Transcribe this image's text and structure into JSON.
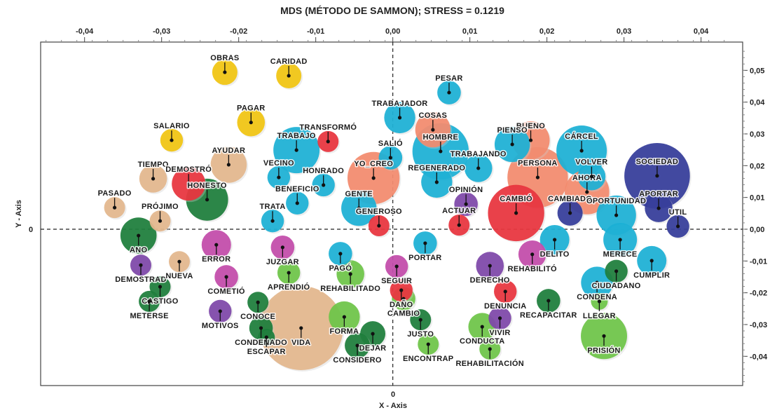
{
  "chart_data": {
    "type": "scatter",
    "title": "MDS (MÉTODO DE SAMMON); STRESS = 0.1219",
    "xlabel": "X - Axis",
    "ylabel": "Y - Axis",
    "xlim": [
      -0.0457,
      0.0454
    ],
    "ylim": [
      -0.0492,
      0.0589
    ],
    "x_ticks": [
      "-0,04",
      "-0,03",
      "-0,02",
      "-0,01",
      "0,00",
      "0,01",
      "0,02",
      "0,03",
      "0,04"
    ],
    "x_tick_values": [
      -0.04,
      -0.03,
      -0.02,
      -0.01,
      0,
      0.01,
      0.02,
      0.03,
      0.04
    ],
    "y_ticks": [
      "0,05",
      "0,04",
      "0,03",
      "0,02",
      "0,01",
      "0,00",
      "-0,01",
      "-0,02",
      "-0,03",
      "-0,04"
    ],
    "y_tick_values": [
      0.05,
      0.04,
      0.03,
      0.02,
      0.01,
      0,
      -0.01,
      -0.02,
      -0.03,
      -0.04
    ],
    "zero_label": "0",
    "grid": false,
    "zero_lines": "dashed",
    "palette": {
      "yellow": "#f1c40f",
      "tan": "#e3b68c",
      "red": "#e8323c",
      "dgreen": "#1b7d3a",
      "cyan": "#1ab0d5",
      "salmon": "#f38a6c",
      "purple": "#7d45a8",
      "magenta": "#c24aa9",
      "navy": "#333b99",
      "lgreen": "#6cc446"
    },
    "points": [
      {
        "label": "OBRAS",
        "x": -0.0218,
        "y": 0.0494,
        "size": 3.0,
        "group": "yellow"
      },
      {
        "label": "CARIDAD",
        "x": -0.0135,
        "y": 0.0483,
        "size": 3.0,
        "group": "yellow"
      },
      {
        "label": "PAGAR",
        "x": -0.0184,
        "y": 0.0336,
        "size": 3.3,
        "group": "yellow"
      },
      {
        "label": "SALARIO",
        "x": -0.0287,
        "y": 0.028,
        "size": 2.7,
        "group": "yellow"
      },
      {
        "label": "AYUDAR",
        "x": -0.0213,
        "y": 0.0203,
        "size": 4.3,
        "group": "tan"
      },
      {
        "label": "TIEMPO",
        "x": -0.0311,
        "y": 0.0159,
        "size": 3.3,
        "group": "tan"
      },
      {
        "label": "DEMOSTRÓ",
        "x": -0.0265,
        "y": 0.0143,
        "size": 4.0,
        "group": "red"
      },
      {
        "label": "HONESTO",
        "x": -0.0241,
        "y": 0.0093,
        "size": 5.0,
        "group": "dgreen"
      },
      {
        "label": "PASADO",
        "x": -0.0361,
        "y": 0.0068,
        "size": 2.5,
        "group": "tan"
      },
      {
        "label": "PRÓJIMO",
        "x": -0.0302,
        "y": 0.0026,
        "size": 2.5,
        "group": "tan"
      },
      {
        "label": "ANO",
        "x": -0.033,
        "y": -0.002,
        "size": 4.3,
        "group": "dgreen"
      },
      {
        "label": "TRABAJO",
        "x": -0.0125,
        "y": 0.0249,
        "size": 5.5,
        "group": "cyan"
      },
      {
        "label": "TRANSFORMÓ",
        "x": -0.0084,
        "y": 0.0276,
        "size": 2.5,
        "group": "red"
      },
      {
        "label": "VECINO",
        "x": -0.0148,
        "y": 0.0163,
        "size": 2.7,
        "group": "cyan"
      },
      {
        "label": "HONRADO",
        "x": -0.009,
        "y": 0.0139,
        "size": 2.7,
        "group": "cyan"
      },
      {
        "label": "BENEFICIO",
        "x": -0.0124,
        "y": 0.0082,
        "size": 2.7,
        "group": "cyan"
      },
      {
        "label": "TRATA",
        "x": -0.0156,
        "y": 0.0026,
        "size": 2.7,
        "group": "cyan"
      },
      {
        "label": "YO_CREO",
        "x": -0.0025,
        "y": 0.0161,
        "size": 6.2,
        "group": "salmon"
      },
      {
        "label": "GENTE",
        "x": -0.0044,
        "y": 0.0066,
        "size": 4.2,
        "group": "cyan"
      },
      {
        "label": "GENEROSO",
        "x": -0.0018,
        "y": 0.0011,
        "size": 2.5,
        "group": "red"
      },
      {
        "label": "SALIÓ",
        "x": -0.0003,
        "y": 0.0225,
        "size": 2.8,
        "group": "cyan"
      },
      {
        "label": "TRABAJADOR",
        "x": 0.0009,
        "y": 0.0351,
        "size": 3.7,
        "group": "cyan"
      },
      {
        "label": "PESAR",
        "x": 0.0073,
        "y": 0.043,
        "size": 2.8,
        "group": "cyan"
      },
      {
        "label": "COSAS",
        "x": 0.0052,
        "y": 0.0313,
        "size": 4.2,
        "group": "salmon"
      },
      {
        "label": "HOMBRE",
        "x": 0.0062,
        "y": 0.0245,
        "size": 6.7,
        "group": "cyan"
      },
      {
        "label": "REGENERADO",
        "x": 0.0057,
        "y": 0.0148,
        "size": 3.7,
        "group": "cyan"
      },
      {
        "label": "TRABAJANDO",
        "x": 0.0111,
        "y": 0.0192,
        "size": 3.3,
        "group": "cyan"
      },
      {
        "label": "OPINIÓN",
        "x": 0.0095,
        "y": 0.0079,
        "size": 2.8,
        "group": "purple"
      },
      {
        "label": "ACTUAR",
        "x": 0.0086,
        "y": 0.0013,
        "size": 2.5,
        "group": "red"
      },
      {
        "label": "BUENO",
        "x": 0.0179,
        "y": 0.028,
        "size": 4.5,
        "group": "salmon"
      },
      {
        "label": "PIENSO",
        "x": 0.0155,
        "y": 0.0267,
        "size": 4.2,
        "group": "cyan"
      },
      {
        "label": "PERSONA",
        "x": 0.0188,
        "y": 0.0163,
        "size": 7.2,
        "group": "salmon"
      },
      {
        "label": "AHORA",
        "x": 0.0252,
        "y": 0.0117,
        "size": 5.3,
        "group": "salmon"
      },
      {
        "label": "CÁRCEL",
        "x": 0.0245,
        "y": 0.0247,
        "size": 6.0,
        "group": "cyan"
      },
      {
        "label": "VOLVER",
        "x": 0.0258,
        "y": 0.0166,
        "size": 3.3,
        "group": "cyan"
      },
      {
        "label": "CAMBIÓ",
        "x": 0.016,
        "y": 0.0051,
        "size": 6.7,
        "group": "red"
      },
      {
        "label": "CAMBIADO",
        "x": 0.023,
        "y": 0.0051,
        "size": 3.0,
        "group": "navy"
      },
      {
        "label": "OPORTUNIDAD",
        "x": 0.029,
        "y": 0.0044,
        "size": 4.7,
        "group": "cyan"
      },
      {
        "label": "SOCIEDAD",
        "x": 0.0343,
        "y": 0.0168,
        "size": 7.8,
        "group": "navy"
      },
      {
        "label": "APORTAR",
        "x": 0.0345,
        "y": 0.0066,
        "size": 3.3,
        "group": "navy"
      },
      {
        "label": "UTIL",
        "x": 0.037,
        "y": 0.0009,
        "size": 2.7,
        "group": "navy"
      },
      {
        "label": "ERROR",
        "x": -0.0229,
        "y": -0.0049,
        "size": 3.5,
        "group": "magenta"
      },
      {
        "label": "JUZGAR",
        "x": -0.0143,
        "y": -0.0057,
        "size": 2.8,
        "group": "magenta"
      },
      {
        "label": "PAGÓ",
        "x": -0.0068,
        "y": -0.0077,
        "size": 2.8,
        "group": "cyan"
      },
      {
        "label": "REHABILITADO",
        "x": -0.0055,
        "y": -0.0141,
        "size": 3.3,
        "group": "lgreen"
      },
      {
        "label": "SEGUIR",
        "x": 0.0005,
        "y": -0.0117,
        "size": 2.7,
        "group": "magenta"
      },
      {
        "label": "PORTAR",
        "x": 0.0042,
        "y": -0.0044,
        "size": 2.8,
        "group": "cyan"
      },
      {
        "label": "DEMOSTRAD",
        "x": -0.0327,
        "y": -0.0113,
        "size": 2.5,
        "group": "purple"
      },
      {
        "label": "NUEVA",
        "x": -0.0277,
        "y": -0.0102,
        "size": 2.5,
        "group": "tan"
      },
      {
        "label": "APRENDIÓ",
        "x": -0.0135,
        "y": -0.0137,
        "size": 2.7,
        "group": "lgreen"
      },
      {
        "label": "COMETIÓ",
        "x": -0.0216,
        "y": -0.015,
        "size": 2.8,
        "group": "magenta"
      },
      {
        "label": "CASTIGO",
        "x": -0.0302,
        "y": -0.0181,
        "size": 2.5,
        "group": "dgreen"
      },
      {
        "label": "METERSE",
        "x": -0.0316,
        "y": -0.0227,
        "size": 2.5,
        "group": "dgreen"
      },
      {
        "label": "MOTIVOS",
        "x": -0.0224,
        "y": -0.0258,
        "size": 2.7,
        "group": "purple"
      },
      {
        "label": "CONOCE",
        "x": -0.0175,
        "y": -0.023,
        "size": 2.5,
        "group": "dgreen"
      },
      {
        "label": "CONDENADO",
        "x": -0.0171,
        "y": -0.0311,
        "size": 2.8,
        "group": "dgreen"
      },
      {
        "label": "ESCAPAR",
        "x": -0.0164,
        "y": -0.034,
        "size": 2.0,
        "group": "dgreen"
      },
      {
        "label": "VIDA",
        "x": -0.0119,
        "y": -0.0311,
        "size": 10.0,
        "group": "tan"
      },
      {
        "label": "FORMA",
        "x": -0.0063,
        "y": -0.0276,
        "size": 3.7,
        "group": "lgreen"
      },
      {
        "label": "DEJAR",
        "x": -0.0026,
        "y": -0.0329,
        "size": 3.0,
        "group": "dgreen"
      },
      {
        "label": "CONSIDERO",
        "x": -0.0046,
        "y": -0.0366,
        "size": 3.0,
        "group": "dgreen"
      },
      {
        "label": "CAMBIO",
        "x": 0.0014,
        "y": -0.0219,
        "size": 2.8,
        "group": "lgreen"
      },
      {
        "label": "DAÑO",
        "x": 0.0011,
        "y": -0.0192,
        "size": 2.7,
        "group": "red"
      },
      {
        "label": "JUSTO",
        "x": 0.0036,
        "y": -0.0285,
        "size": 2.5,
        "group": "dgreen"
      },
      {
        "label": "ENCONTRAP",
        "x": 0.0046,
        "y": -0.0362,
        "size": 2.5,
        "group": "lgreen"
      },
      {
        "label": "DERECHO",
        "x": 0.0126,
        "y": -0.0115,
        "size": 3.3,
        "group": "purple"
      },
      {
        "label": "REHABILITÓ",
        "x": 0.0181,
        "y": -0.0079,
        "size": 3.3,
        "group": "magenta"
      },
      {
        "label": "DELITO",
        "x": 0.021,
        "y": -0.0033,
        "size": 3.5,
        "group": "cyan"
      },
      {
        "label": "DENUNCIA",
        "x": 0.0146,
        "y": -0.0196,
        "size": 2.7,
        "group": "red"
      },
      {
        "label": "CONDUCTA",
        "x": 0.0116,
        "y": -0.0307,
        "size": 3.3,
        "group": "lgreen"
      },
      {
        "label": "VIVIR",
        "x": 0.0139,
        "y": -0.028,
        "size": 2.7,
        "group": "purple"
      },
      {
        "label": "REHABILITACIÓN",
        "x": 0.0126,
        "y": -0.0377,
        "size": 2.5,
        "group": "lgreen"
      },
      {
        "label": "RECAPACITAR",
        "x": 0.0202,
        "y": -0.0225,
        "size": 2.8,
        "group": "dgreen"
      },
      {
        "label": "MERECE",
        "x": 0.0295,
        "y": -0.0033,
        "size": 4.0,
        "group": "cyan"
      },
      {
        "label": "CUMPLIR",
        "x": 0.0336,
        "y": -0.0099,
        "size": 3.5,
        "group": "cyan"
      },
      {
        "label": "CONDENA",
        "x": 0.0265,
        "y": -0.0168,
        "size": 3.8,
        "group": "cyan"
      },
      {
        "label": "CIUDADANO",
        "x": 0.029,
        "y": -0.0132,
        "size": 2.7,
        "group": "dgreen"
      },
      {
        "label": "LLEGAR",
        "x": 0.0268,
        "y": -0.0227,
        "size": 2.0,
        "group": "lgreen"
      },
      {
        "label": "PRISIÓN",
        "x": 0.0274,
        "y": -0.0336,
        "size": 5.5,
        "group": "lgreen"
      }
    ]
  }
}
